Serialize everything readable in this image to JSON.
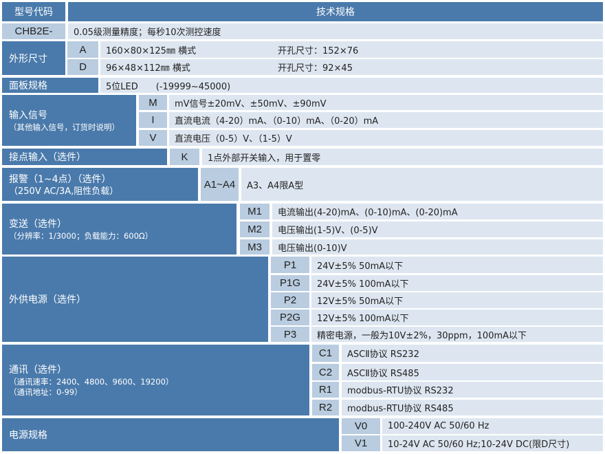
{
  "header": {
    "model_code": "型号代码",
    "spec": "技术规格"
  },
  "base": {
    "code": "CHB2E-",
    "desc": "0.05级测量精度；每秒10次测控速度"
  },
  "dimensions": {
    "label": "外形尺寸",
    "rows": [
      {
        "code": "A",
        "desc": "160×80×125㎜ 横式",
        "cutout": "开孔尺寸：152×76"
      },
      {
        "code": "D",
        "desc": "96×48×112㎜ 横式",
        "cutout": "开孔尺寸：92×45"
      }
    ]
  },
  "panel": {
    "label": "面板规格",
    "desc": "5位LED　　(-19999~45000)"
  },
  "input": {
    "label": "输入信号",
    "note": "（其他输入信号，订货时说明）",
    "rows": [
      {
        "code": "M",
        "desc": "mV信号±20mV、±50mV、±90mV"
      },
      {
        "code": "I",
        "desc": "直流电流（4-20）mA、（0-10）mA、（0-20）mA"
      },
      {
        "code": "V",
        "desc": "直流电压（0-5）V、（1-5）V"
      }
    ]
  },
  "contact": {
    "label": "接点输入（选件）",
    "code": "K",
    "desc": "1点外部开关输入，用于置零"
  },
  "alarm": {
    "label": "报警（1~4点）（选件）",
    "note": "（250V AC/3A,阻性负载）",
    "code": "A1~A4",
    "desc": "A3、A4限A型"
  },
  "transmit": {
    "label": "变送（选件）",
    "note": "（分辨率：1/3000；负载能力：600Ω）",
    "rows": [
      {
        "code": "M1",
        "desc": "电流输出(4-20)mA、(0-10)mA、(0-20)mA"
      },
      {
        "code": "M2",
        "desc": "电压输出(1-5)V、(0-5)V"
      },
      {
        "code": "M3",
        "desc": "电压输出(0-10)V"
      }
    ]
  },
  "aux_power": {
    "label": "外供电源（选件）",
    "rows": [
      {
        "code": "P1",
        "desc": "24V±5% 50mA以下"
      },
      {
        "code": "P1G",
        "desc": "24V±5% 100mA以下"
      },
      {
        "code": "P2",
        "desc": "12V±5% 50mA以下"
      },
      {
        "code": "P2G",
        "desc": "12V±5% 100mA以下"
      },
      {
        "code": "P3",
        "desc": "精密电源，一般为10V±2%，30ppm，100mA以下"
      }
    ]
  },
  "comm": {
    "label": "通讯（选件）",
    "note1": "（通讯速率：2400、4800、9600、19200）",
    "note2": "（通讯地址：0-99）",
    "rows": [
      {
        "code": "C1",
        "desc": "ASCⅡ协议 RS232"
      },
      {
        "code": "C2",
        "desc": "ASCⅡ协议 RS485"
      },
      {
        "code": "R1",
        "desc": "modbus-RTU协议 RS232"
      },
      {
        "code": "R2",
        "desc": "modbus-RTU协议 RS485"
      }
    ]
  },
  "power": {
    "label": "电源规格",
    "rows": [
      {
        "code": "V0",
        "desc": "100-240V AC 50/60 Hz"
      },
      {
        "code": "V1",
        "desc": "10-24V AC 50/60 Hz;10-24V DC(限D尺寸)"
      }
    ]
  },
  "colors": {
    "label_bg": "#4a7aab",
    "code_bg": "#b9cce0",
    "value_bg": "#dde6f0"
  }
}
